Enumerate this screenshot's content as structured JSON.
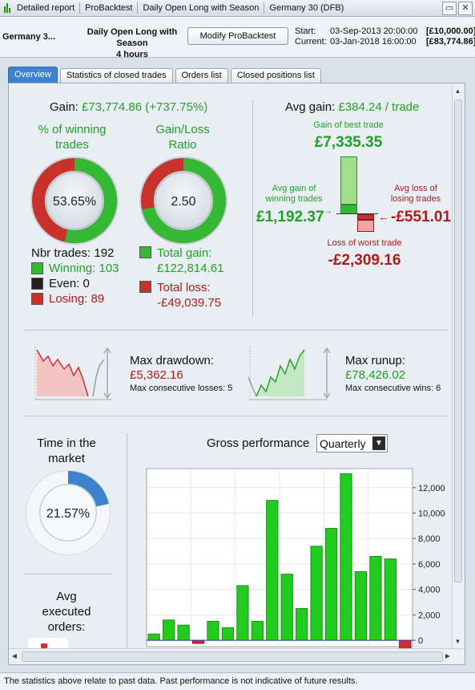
{
  "titlebar": {
    "items": [
      "Detailed report",
      "ProBacktest",
      "Daily Open Long with Season",
      "Germany 30 (DFB)"
    ]
  },
  "header": {
    "instrument": "Germany 3...",
    "strategy_line1": "Daily Open Long with Season",
    "strategy_line2": "4 hours",
    "modify_button": "Modify ProBacktest",
    "start_label": "Start:",
    "start_date": "03-Sep-2013 20:00:00",
    "start_capital": "[£10,000.00]",
    "current_label": "Current:",
    "current_date": "03-Jan-2018 16:00:00",
    "current_capital": "[£83,774.86]"
  },
  "tabs": [
    "Overview",
    "Statistics of closed trades",
    "Orders list",
    "Closed positions list"
  ],
  "overview": {
    "gain_label": "Gain:",
    "gain_value": "£73,774.86 (+737.75%)",
    "winning_pct_title1": "% of winning",
    "winning_pct_title2": "trades",
    "winning_pct_value": "53.65%",
    "winning_fraction": 0.5365,
    "ratio_title1": "Gain/Loss",
    "ratio_title2": "Ratio",
    "ratio_value": "2.50",
    "nbr_trades": "Nbr trades: 192",
    "winning": "Winning: 103",
    "even": "Even: 0",
    "losing": "Losing: 89",
    "total_gain_label": "Total gain:",
    "total_gain_value": "£122,814.61",
    "total_loss_label": "Total loss:",
    "total_loss_value": "-£49,039.75",
    "avg_gain_label": "Avg gain:",
    "avg_gain_value": "£384.24 / trade",
    "best_trade_label": "Gain of best trade",
    "best_trade_value": "£7,335.35",
    "avg_win_label1": "Avg gain of",
    "avg_win_label2": "winning trades",
    "avg_win_value": "£1,192.37",
    "avg_loss_label1": "Avg loss of",
    "avg_loss_label2": "losing trades",
    "avg_loss_value": "-£551.01",
    "worst_trade_label": "Loss of worst trade",
    "worst_trade_value": "-£2,309.16",
    "max_drawdown_label": "Max drawdown:",
    "max_drawdown_value": "£5,362.16",
    "max_consec_losses": "Max consecutive losses: 5",
    "max_runup_label": "Max runup:",
    "max_runup_value": "£78,426.02",
    "max_consec_wins": "Max consecutive wins: 6",
    "time_in_market_title1": "Time in the",
    "time_in_market_title2": "market",
    "time_in_market_value": "21.57%",
    "time_in_market_fraction": 0.2157,
    "avg_exec_title1": "Avg",
    "avg_exec_title2": "executed",
    "avg_exec_title3": "orders:",
    "gross_perf_title": "Gross performance",
    "period_select": "Quarterly"
  },
  "colors": {
    "green": "#22a02a",
    "red": "#b01a1a",
    "blue_accent": "#3d82cc"
  },
  "chart_data": {
    "type": "bar",
    "title": "Gross performance",
    "ylim": [
      -500,
      13500
    ],
    "yticks": [
      0,
      2000,
      4000,
      6000,
      8000,
      10000,
      12000
    ],
    "ytick_labels": [
      "0",
      "2,000",
      "4,000",
      "6,000",
      "8,000",
      "10,000",
      "12,000"
    ],
    "values": [
      500,
      1600,
      1200,
      -250,
      1500,
      1000,
      4300,
      1500,
      11000,
      5200,
      2500,
      7400,
      8800,
      13100,
      5400,
      6600,
      6400,
      -800
    ]
  },
  "footer": {
    "disclaimer": "The statistics above relate to past data. Past performance is not indicative of future results."
  }
}
